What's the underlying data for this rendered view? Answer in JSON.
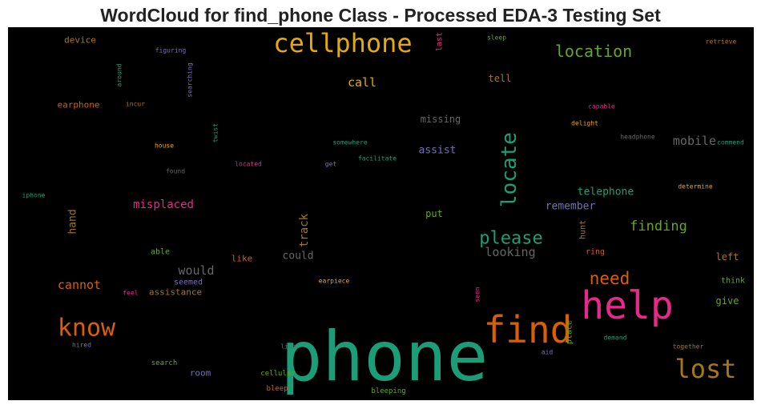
{
  "chart_data": {
    "type": "wordcloud",
    "title": "WordCloud for find_phone Class - Processed EDA-3 Testing Set",
    "background": "#000000",
    "colormap": "Dark2",
    "words": [
      {
        "text": "phone",
        "color": "#1b9e77"
      },
      {
        "text": "help",
        "color": "#e7298a"
      },
      {
        "text": "find",
        "color": "#d95f02"
      },
      {
        "text": "cellphone",
        "color": "#e6ab02"
      },
      {
        "text": "know",
        "color": "#d95f02"
      },
      {
        "text": "lost",
        "color": "#a6761d"
      },
      {
        "text": "locate",
        "color": "#1b9e77"
      },
      {
        "text": "please",
        "color": "#1b9e77"
      },
      {
        "text": "location",
        "color": "#66a61e"
      },
      {
        "text": "need",
        "color": "#d95f02"
      },
      {
        "text": "finding",
        "color": "#66a61e"
      },
      {
        "text": "mobile",
        "color": "#666666"
      },
      {
        "text": "cannot",
        "color": "#d95f02"
      },
      {
        "text": "call",
        "color": "#e6ab02"
      },
      {
        "text": "would",
        "color": "#666666"
      },
      {
        "text": "looking",
        "color": "#666666"
      },
      {
        "text": "misplaced",
        "color": "#e7298a"
      },
      {
        "text": "track",
        "color": "#a6761d"
      },
      {
        "text": "telephone",
        "color": "#1b9e77"
      },
      {
        "text": "remember",
        "color": "#7570b3"
      },
      {
        "text": "assist",
        "color": "#7570b3"
      },
      {
        "text": "could",
        "color": "#666666"
      },
      {
        "text": "hand",
        "color": "#a6761d"
      },
      {
        "text": "missing",
        "color": "#666666"
      },
      {
        "text": "tell",
        "color": "#a6761d"
      },
      {
        "text": "put",
        "color": "#66a61e"
      },
      {
        "text": "left",
        "color": "#a6761d"
      },
      {
        "text": "give",
        "color": "#66a61e"
      },
      {
        "text": "earphone",
        "color": "#d95f02"
      },
      {
        "text": "device",
        "color": "#a6761d"
      },
      {
        "text": "like",
        "color": "#d95f02"
      },
      {
        "text": "able",
        "color": "#66a61e"
      },
      {
        "text": "seemed",
        "color": "#7570b3"
      },
      {
        "text": "assistance",
        "color": "#a6761d"
      },
      {
        "text": "room",
        "color": "#7570b3"
      },
      {
        "text": "think",
        "color": "#66a61e"
      },
      {
        "text": "ring",
        "color": "#d95f02"
      },
      {
        "text": "place",
        "color": "#66a61e"
      },
      {
        "text": "hunt",
        "color": "#a6761d"
      },
      {
        "text": "last",
        "color": "#e7298a"
      },
      {
        "text": "search",
        "color": "#66a61e"
      },
      {
        "text": "cellular",
        "color": "#66a61e"
      },
      {
        "text": "bleeping",
        "color": "#66a61e"
      },
      {
        "text": "bleep",
        "color": "#d95f02"
      },
      {
        "text": "hired",
        "color": "#7570b3"
      },
      {
        "text": "line",
        "color": "#666666"
      },
      {
        "text": "aid",
        "color": "#7570b3"
      },
      {
        "text": "demand",
        "color": "#1b9e77"
      },
      {
        "text": "together",
        "color": "#a6761d"
      },
      {
        "text": "feel",
        "color": "#e7298a"
      },
      {
        "text": "earpiece",
        "color": "#e6ab02"
      },
      {
        "text": "seen",
        "color": "#e7298a"
      },
      {
        "text": "determine",
        "color": "#e6ab02"
      },
      {
        "text": "capable",
        "color": "#e7298a"
      },
      {
        "text": "delight",
        "color": "#e6ab02"
      },
      {
        "text": "headphone",
        "color": "#666666"
      },
      {
        "text": "commend",
        "color": "#1b9e77"
      },
      {
        "text": "retrieve",
        "color": "#a6761d"
      },
      {
        "text": "sleep",
        "color": "#66a61e"
      },
      {
        "text": "figuring",
        "color": "#7570b3"
      },
      {
        "text": "around",
        "color": "#1b9e77"
      },
      {
        "text": "searching",
        "color": "#7570b3"
      },
      {
        "text": "incur",
        "color": "#a6761d"
      },
      {
        "text": "twist",
        "color": "#1b9e77"
      },
      {
        "text": "somewhere",
        "color": "#1b9e77"
      },
      {
        "text": "facilitate",
        "color": "#1b9e77"
      },
      {
        "text": "get",
        "color": "#7570b3"
      },
      {
        "text": "located",
        "color": "#e7298a"
      },
      {
        "text": "found",
        "color": "#666666"
      },
      {
        "text": "house",
        "color": "#e6ab02"
      },
      {
        "text": "iphone",
        "color": "#1b9e77"
      }
    ]
  }
}
